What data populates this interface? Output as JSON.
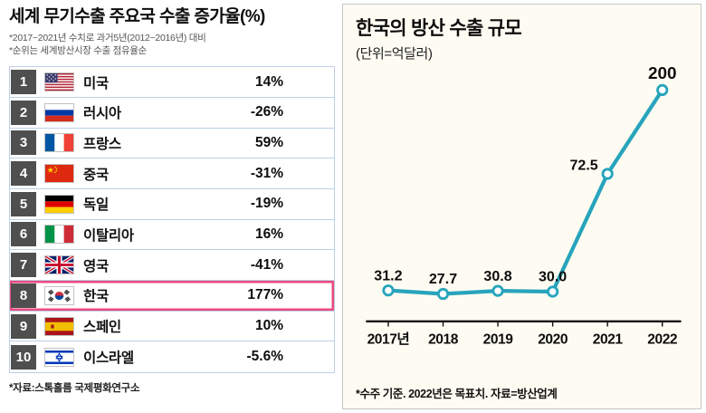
{
  "left_panel": {
    "title": "세계 무기수출 주요국 수출 증가율(%)",
    "subtitles": [
      "*2017~2021년 수치로 과거5년(2012~2016년) 대비",
      "*순위는 세계방산시장 수출 점유율순"
    ],
    "rows": [
      {
        "rank": "1",
        "flag": "us",
        "country": "미국",
        "value": "14%",
        "highlight": false
      },
      {
        "rank": "2",
        "flag": "ru",
        "country": "러시아",
        "value": "-26%",
        "highlight": false
      },
      {
        "rank": "3",
        "flag": "fr",
        "country": "프랑스",
        "value": "59%",
        "highlight": false
      },
      {
        "rank": "4",
        "flag": "cn",
        "country": "중국",
        "value": "-31%",
        "highlight": false
      },
      {
        "rank": "5",
        "flag": "de",
        "country": "독일",
        "value": "-19%",
        "highlight": false
      },
      {
        "rank": "6",
        "flag": "it",
        "country": "이탈리아",
        "value": "16%",
        "highlight": false
      },
      {
        "rank": "7",
        "flag": "gb",
        "country": "영국",
        "value": "-41%",
        "highlight": false
      },
      {
        "rank": "8",
        "flag": "kr",
        "country": "한국",
        "value": "177%",
        "highlight": true
      },
      {
        "rank": "9",
        "flag": "es",
        "country": "스페인",
        "value": "10%",
        "highlight": false
      },
      {
        "rank": "10",
        "flag": "il",
        "country": "이스라엘",
        "value": "-5.6%",
        "highlight": false
      }
    ],
    "source": "*자료:스톡홀름 국제평화연구소",
    "highlight_color": "#ec4a7e",
    "rank_box_color": "#4f4f4f"
  },
  "right_panel": {
    "title": "한국의 방산 수출 규모",
    "unit": "(단위=억달러)",
    "footnote": "*수주 기준. 2022년은 목표치. 자료=방산업계"
  },
  "chart_data": {
    "type": "line",
    "title": "한국의 방산 수출 규모",
    "ylabel": "억달러",
    "categories": [
      "2017년",
      "2018",
      "2019",
      "2020",
      "2021",
      "2022"
    ],
    "values": [
      31.2,
      27.7,
      30.8,
      30.0,
      72.5,
      200
    ],
    "point_labels": [
      "31.2",
      "27.7",
      "30.8",
      "30.0",
      "72.5",
      "200"
    ],
    "ylim": [
      0,
      210
    ],
    "line_color": "#27a4bc",
    "marker": "open-circle",
    "grid": false,
    "legend": "none",
    "not_to_scale": true
  }
}
